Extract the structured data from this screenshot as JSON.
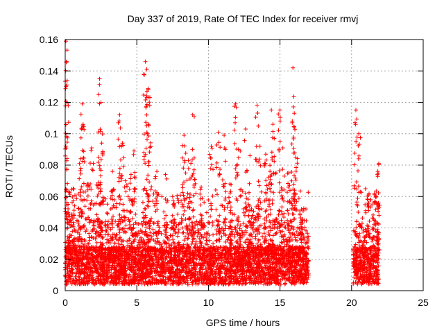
{
  "chart_data": {
    "type": "scatter",
    "title": "Day 337 of 2019, Rate Of TEC Index for receiver rmvj",
    "xlabel": "GPS time / hours",
    "ylabel": "ROTI / TECUs",
    "xlim": [
      0,
      25
    ],
    "ylim": [
      0,
      0.16
    ],
    "x_ticks": [
      "0",
      "5",
      "10",
      "15",
      "20",
      "25"
    ],
    "y_ticks": [
      "0",
      "0.02",
      "0.04",
      "0.06",
      "0.08",
      "0.1",
      "0.12",
      "0.14",
      "0.16"
    ],
    "grid": true,
    "marker": "+",
    "color": "#ff0000",
    "series": [
      {
        "name": "ROTI",
        "segments": [
          [
            0.0,
            17.0
          ],
          [
            20.1,
            21.9
          ]
        ],
        "peaks": [
          {
            "x": 0.05,
            "y": 0.159
          },
          {
            "x": 0.1,
            "y": 0.146
          },
          {
            "x": 0.12,
            "y": 0.131
          },
          {
            "x": 0.25,
            "y": 0.063
          },
          {
            "x": 0.55,
            "y": 0.065
          },
          {
            "x": 1.0,
            "y": 0.081
          },
          {
            "x": 1.2,
            "y": 0.119
          },
          {
            "x": 1.25,
            "y": 0.106
          },
          {
            "x": 1.6,
            "y": 0.068
          },
          {
            "x": 1.85,
            "y": 0.091
          },
          {
            "x": 2.3,
            "y": 0.069
          },
          {
            "x": 2.4,
            "y": 0.135
          },
          {
            "x": 2.5,
            "y": 0.12
          },
          {
            "x": 2.55,
            "y": 0.094
          },
          {
            "x": 3.3,
            "y": 0.076
          },
          {
            "x": 3.8,
            "y": 0.112
          },
          {
            "x": 4.0,
            "y": 0.094
          },
          {
            "x": 4.2,
            "y": 0.07
          },
          {
            "x": 4.6,
            "y": 0.074
          },
          {
            "x": 4.8,
            "y": 0.089
          },
          {
            "x": 5.5,
            "y": 0.088
          },
          {
            "x": 5.6,
            "y": 0.146
          },
          {
            "x": 5.7,
            "y": 0.141
          },
          {
            "x": 5.8,
            "y": 0.128
          },
          {
            "x": 5.9,
            "y": 0.118
          },
          {
            "x": 6.4,
            "y": 0.076
          },
          {
            "x": 7.0,
            "y": 0.074
          },
          {
            "x": 7.5,
            "y": 0.06
          },
          {
            "x": 8.3,
            "y": 0.099
          },
          {
            "x": 8.6,
            "y": 0.083
          },
          {
            "x": 8.9,
            "y": 0.112
          },
          {
            "x": 9.0,
            "y": 0.077
          },
          {
            "x": 9.5,
            "y": 0.066
          },
          {
            "x": 10.2,
            "y": 0.092
          },
          {
            "x": 10.7,
            "y": 0.101
          },
          {
            "x": 11.1,
            "y": 0.099
          },
          {
            "x": 11.5,
            "y": 0.068
          },
          {
            "x": 11.9,
            "y": 0.119
          },
          {
            "x": 12.1,
            "y": 0.09
          },
          {
            "x": 12.6,
            "y": 0.103
          },
          {
            "x": 12.9,
            "y": 0.086
          },
          {
            "x": 13.4,
            "y": 0.118
          },
          {
            "x": 13.6,
            "y": 0.092
          },
          {
            "x": 14.0,
            "y": 0.087
          },
          {
            "x": 14.3,
            "y": 0.076
          },
          {
            "x": 14.4,
            "y": 0.115
          },
          {
            "x": 14.6,
            "y": 0.097
          },
          {
            "x": 15.0,
            "y": 0.115
          },
          {
            "x": 15.2,
            "y": 0.091
          },
          {
            "x": 15.6,
            "y": 0.075
          },
          {
            "x": 15.9,
            "y": 0.142
          },
          {
            "x": 16.0,
            "y": 0.113
          },
          {
            "x": 16.1,
            "y": 0.085
          },
          {
            "x": 16.5,
            "y": 0.052
          },
          {
            "x": 20.3,
            "y": 0.115
          },
          {
            "x": 20.5,
            "y": 0.1
          },
          {
            "x": 21.2,
            "y": 0.061
          },
          {
            "x": 21.6,
            "y": 0.062
          },
          {
            "x": 21.9,
            "y": 0.081
          },
          {
            "x": 21.8,
            "y": 0.074
          }
        ]
      }
    ]
  }
}
